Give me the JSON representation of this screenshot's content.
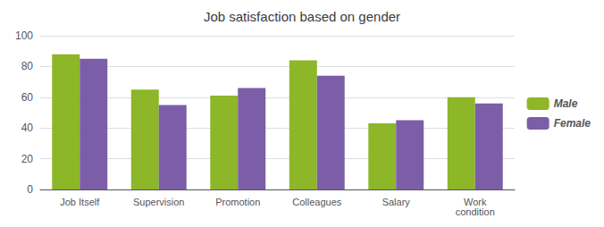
{
  "chart_data": {
    "type": "bar",
    "title": "Job satisfaction based on gender",
    "categories": [
      "Job Itself",
      "Supervision",
      "Promotion",
      "Colleagues",
      "Salary",
      "Work\ncondition"
    ],
    "series": [
      {
        "name": "Male",
        "color": "#8db629",
        "values": [
          88,
          65,
          61,
          84,
          43,
          60
        ]
      },
      {
        "name": "Female",
        "color": "#7b5ea7",
        "values": [
          85,
          55,
          66,
          74,
          45,
          56
        ]
      }
    ],
    "ylim": [
      0,
      100
    ],
    "yticks": [
      0,
      20,
      40,
      60,
      80,
      100
    ],
    "grid": true,
    "legend": "right"
  }
}
